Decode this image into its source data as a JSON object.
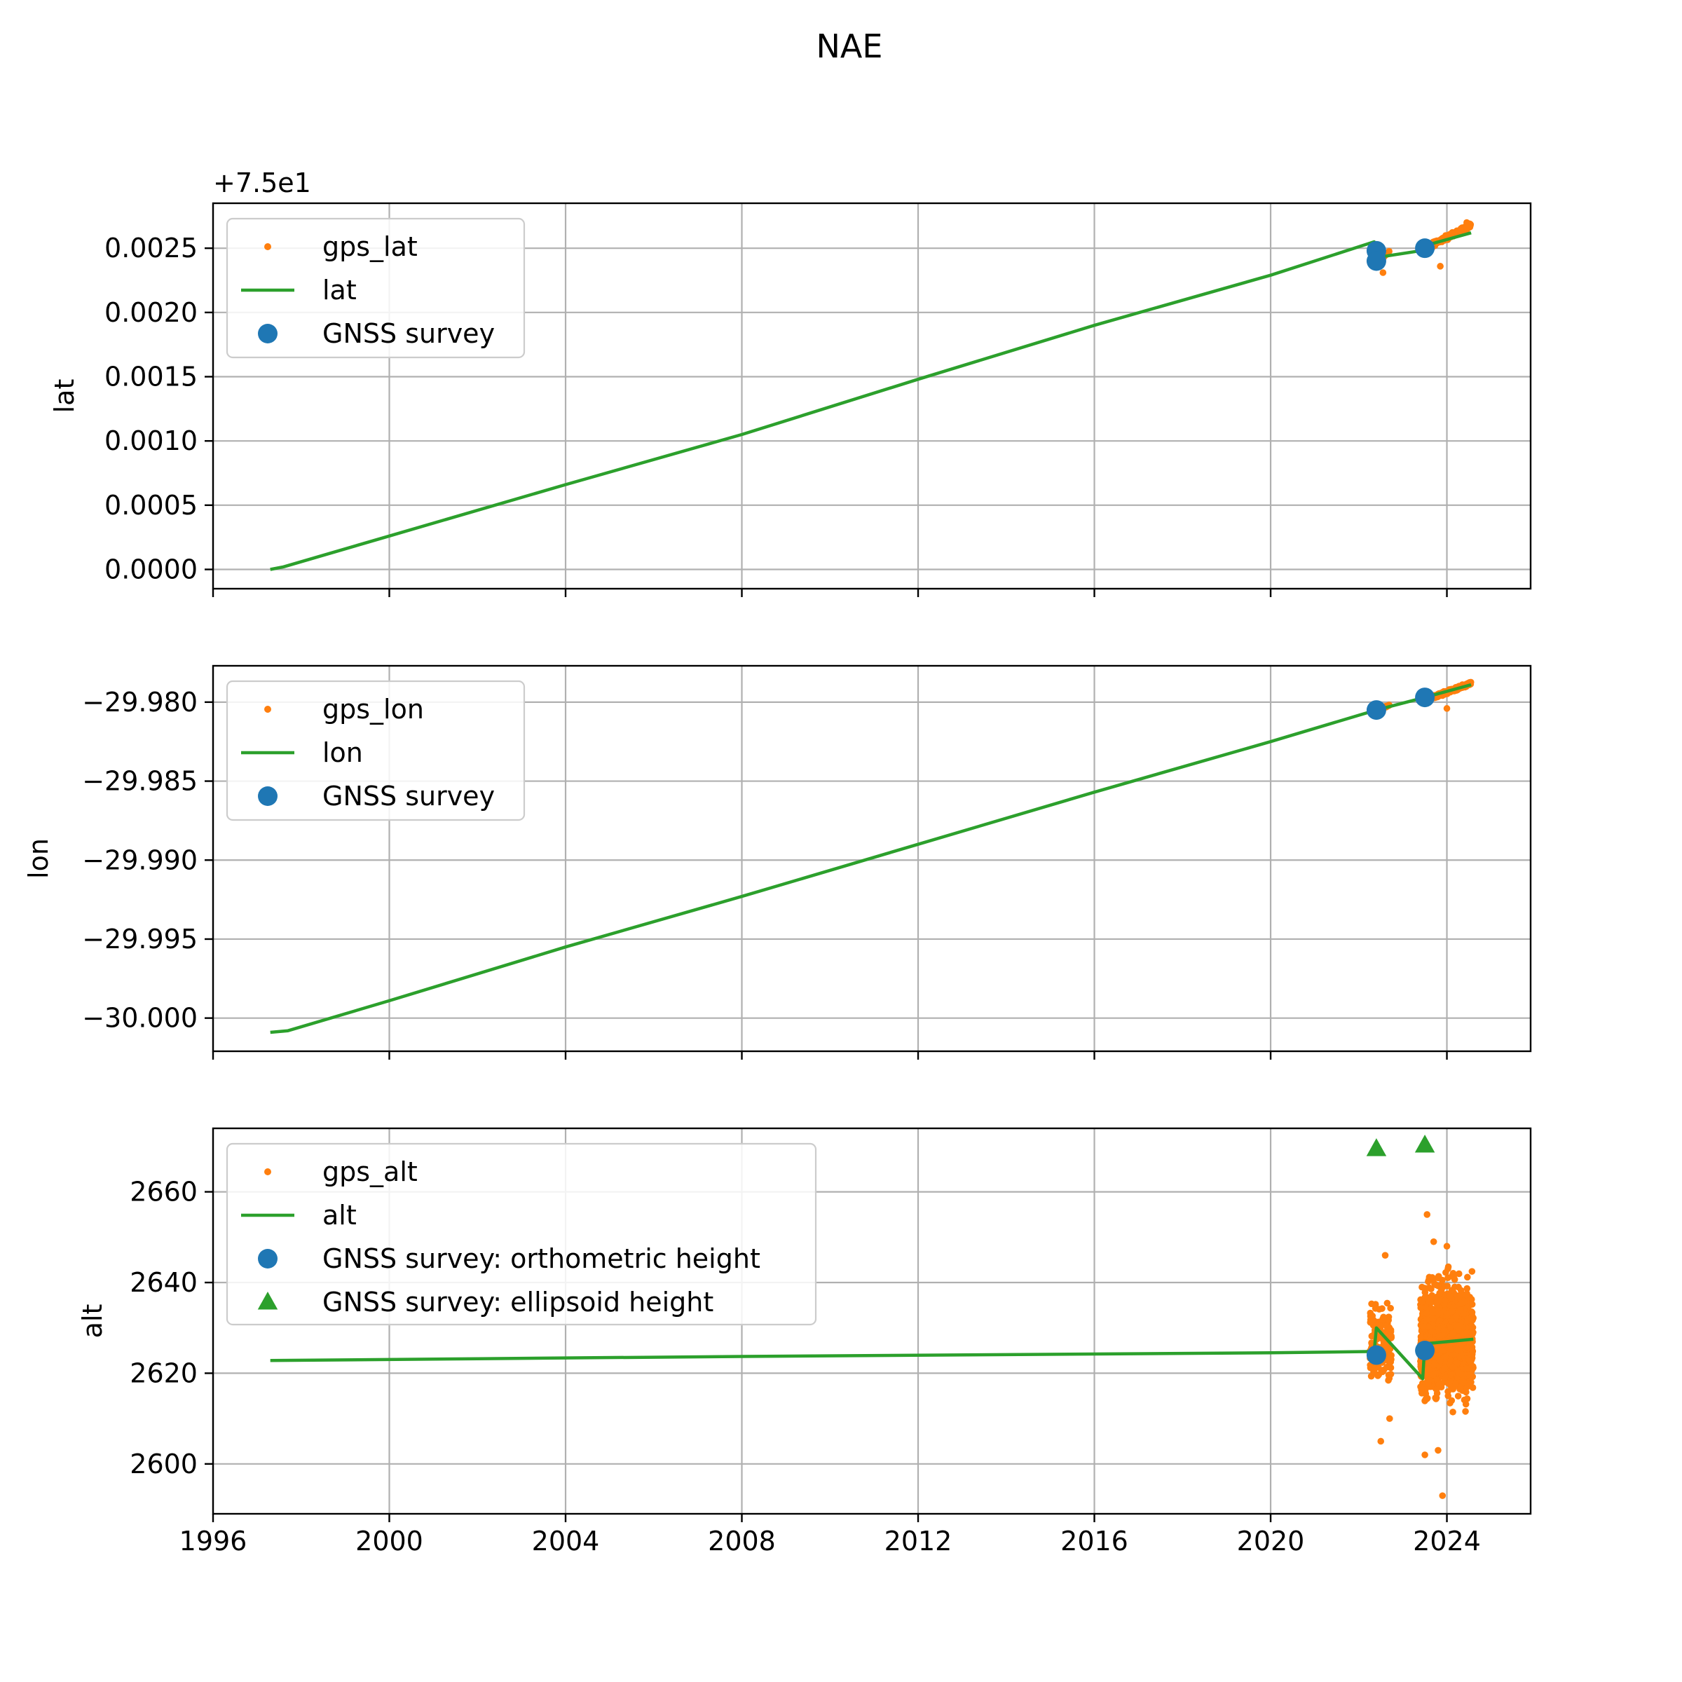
{
  "figure": {
    "title": "NAE",
    "x_tick_labels": [
      "1996",
      "2000",
      "2004",
      "2008",
      "2012",
      "2016",
      "2020",
      "2024"
    ]
  },
  "colors": {
    "gps_points": "#ff7f0e",
    "model_line": "#2ca02c",
    "survey_points": "#1f77b4",
    "grid": "#b0b0b0"
  },
  "chart_data": [
    {
      "type": "line",
      "ylabel": "lat",
      "offset_label": "+7.5e1",
      "xlim": [
        1996.0,
        2025.9
      ],
      "ylim": [
        -0.00015,
        0.00285
      ],
      "grid": true,
      "legend_position": "upper-left",
      "y_ticks": [
        0.0,
        0.0005,
        0.001,
        0.0015,
        0.002,
        0.0025
      ],
      "y_tick_labels": [
        "0.0000",
        "0.0005",
        "0.0010",
        "0.0015",
        "0.0020",
        "0.0025"
      ],
      "series": [
        {
          "name": "gps_lat",
          "kind": "scatter",
          "clusters": [
            {
              "x": [
                2022.3,
                2022.7
              ],
              "y": [
                0.00235,
                0.00248
              ]
            },
            {
              "x": [
                2023.4,
                2024.55
              ],
              "y": [
                0.00248,
                0.00268
              ]
            }
          ],
          "outliers": [
            [
              2022.55,
              0.00231
            ],
            [
              2023.85,
              0.00236
            ],
            [
              2024.45,
              0.0027
            ]
          ]
        },
        {
          "name": "lat",
          "kind": "line",
          "points": [
            [
              1997.3,
              0.0
            ],
            [
              1997.6,
              2e-05
            ],
            [
              2000.0,
              0.00026
            ],
            [
              2004.0,
              0.00066
            ],
            [
              2008.0,
              0.00105
            ],
            [
              2012.0,
              0.00148
            ],
            [
              2016.0,
              0.0019
            ],
            [
              2020.0,
              0.00229
            ],
            [
              2022.35,
              0.00255
            ],
            [
              2022.45,
              0.00243
            ],
            [
              2023.4,
              0.00248
            ],
            [
              2023.5,
              0.00252
            ],
            [
              2024.55,
              0.00262
            ]
          ]
        },
        {
          "name": "GNSS survey",
          "kind": "markers",
          "marker": "circle",
          "points": [
            [
              2022.4,
              0.00248
            ],
            [
              2022.4,
              0.0024
            ],
            [
              2023.5,
              0.0025
            ]
          ]
        }
      ]
    },
    {
      "type": "line",
      "ylabel": "lon",
      "xlim": [
        1996.0,
        2025.9
      ],
      "ylim": [
        -30.0021,
        -29.9777
      ],
      "grid": true,
      "legend_position": "upper-left",
      "y_ticks": [
        -30.0,
        -29.995,
        -29.99,
        -29.985,
        -29.98
      ],
      "y_tick_labels": [
        "−30.000",
        "−29.995",
        "−29.990",
        "−29.985",
        "−29.980"
      ],
      "series": [
        {
          "name": "gps_lon",
          "kind": "scatter",
          "clusters": [
            {
              "x": [
                2022.3,
                2022.7
              ],
              "y": [
                -29.9806,
                -29.9802
              ]
            },
            {
              "x": [
                2023.4,
                2024.55
              ],
              "y": [
                -29.98,
                -29.9788
              ]
            }
          ],
          "outliers": [
            [
              2024.0,
              -29.9804
            ]
          ]
        },
        {
          "name": "lon",
          "kind": "line",
          "points": [
            [
              1997.3,
              -30.0009
            ],
            [
              1997.7,
              -30.0008
            ],
            [
              2000.0,
              -29.9989
            ],
            [
              2004.0,
              -29.9955
            ],
            [
              2008.0,
              -29.9923
            ],
            [
              2012.0,
              -29.989
            ],
            [
              2016.0,
              -29.9857
            ],
            [
              2020.0,
              -29.9825
            ],
            [
              2022.4,
              -29.9805
            ],
            [
              2023.5,
              -29.9797
            ],
            [
              2024.55,
              -29.9789
            ]
          ]
        },
        {
          "name": "GNSS survey",
          "kind": "markers",
          "marker": "circle",
          "points": [
            [
              2022.4,
              -29.9805
            ],
            [
              2023.5,
              -29.9797
            ]
          ]
        }
      ]
    },
    {
      "type": "line",
      "ylabel": "alt",
      "xlim": [
        1996.0,
        2025.9
      ],
      "ylim": [
        2589.0,
        2674.0
      ],
      "grid": true,
      "legend_position": "upper-left",
      "y_ticks": [
        2600,
        2620,
        2640,
        2660
      ],
      "y_tick_labels": [
        "2600",
        "2620",
        "2640",
        "2660"
      ],
      "series": [
        {
          "name": "gps_alt",
          "kind": "scatter",
          "clusters": [
            {
              "x": [
                2022.25,
                2022.75
              ],
              "y": [
                2613,
                2638
              ]
            },
            {
              "x": [
                2023.4,
                2024.6
              ],
              "y": [
                2610,
                2645
              ]
            }
          ],
          "outliers": [
            [
              2022.5,
              2605
            ],
            [
              2022.6,
              2646
            ],
            [
              2022.7,
              2610
            ],
            [
              2023.5,
              2602
            ],
            [
              2023.55,
              2655
            ],
            [
              2023.9,
              2593
            ],
            [
              2023.7,
              2649
            ],
            [
              2024.0,
              2648
            ],
            [
              2023.8,
              2603
            ]
          ]
        },
        {
          "name": "alt",
          "kind": "line",
          "points": [
            [
              1997.3,
              2622.8
            ],
            [
              2002.0,
              2623.2
            ],
            [
              2008.0,
              2623.7
            ],
            [
              2014.0,
              2624.1
            ],
            [
              2020.0,
              2624.5
            ],
            [
              2022.35,
              2624.8
            ],
            [
              2022.4,
              2630.0
            ],
            [
              2023.45,
              2618.8
            ],
            [
              2023.5,
              2626.5
            ],
            [
              2024.6,
              2627.5
            ]
          ]
        },
        {
          "name": "GNSS survey: orthometric height",
          "kind": "markers",
          "marker": "circle",
          "points": [
            [
              2022.4,
              2624.0
            ],
            [
              2023.5,
              2625.0
            ]
          ]
        },
        {
          "name": "GNSS survey: ellipsoid height",
          "kind": "markers",
          "marker": "triangle",
          "points": [
            [
              2022.4,
              2669.5
            ],
            [
              2023.5,
              2670.3
            ]
          ]
        }
      ]
    }
  ]
}
